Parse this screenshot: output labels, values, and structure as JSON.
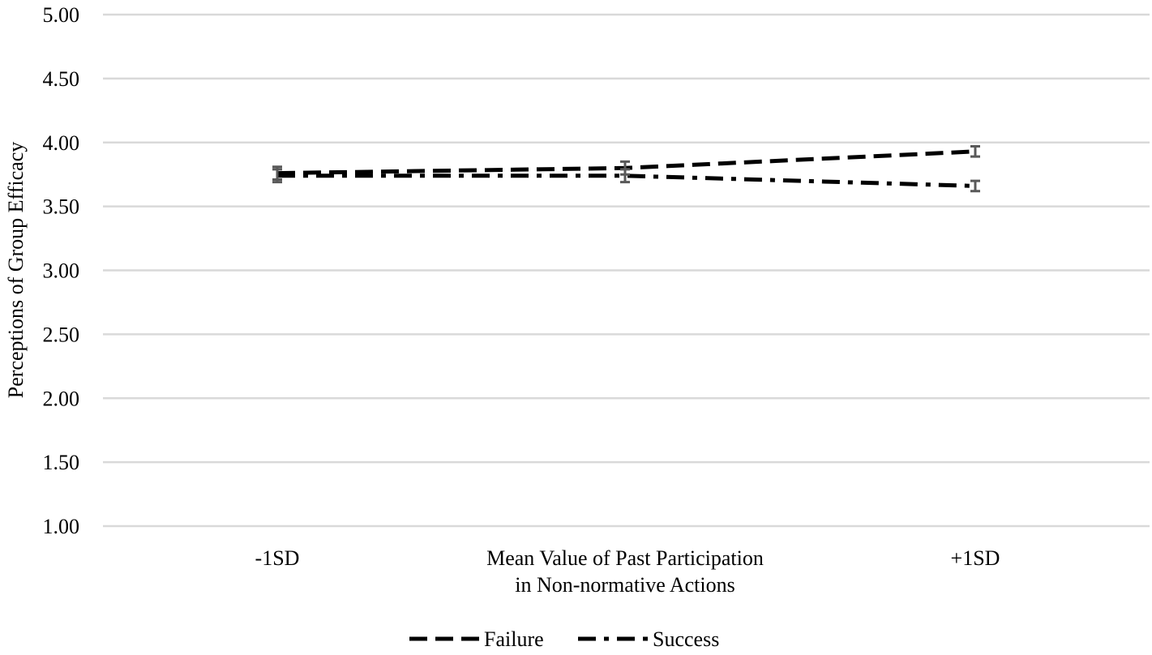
{
  "chart_data": {
    "type": "line",
    "categories": [
      "-1SD",
      "Mean Value of Past Participation",
      "+1SD"
    ],
    "category_label_lines": [
      [
        "-1SD"
      ],
      [
        "Mean Value of Past Participation",
        "in Non-normative Actions"
      ],
      [
        "+1SD"
      ]
    ],
    "ylabel": "Perceptions of Group Efficacy",
    "ylim": [
      1.0,
      5.0
    ],
    "yticks": [
      "1.00",
      "1.50",
      "2.00",
      "2.50",
      "3.00",
      "3.50",
      "4.00",
      "4.50",
      "5.00"
    ],
    "grid": true,
    "legend_position": "bottom",
    "series": [
      {
        "name": "Failure",
        "values": [
          3.76,
          3.8,
          3.93
        ],
        "errors": [
          0.05,
          0.05,
          0.04
        ],
        "dash": "dashed",
        "color": "#000000"
      },
      {
        "name": "Success",
        "values": [
          3.74,
          3.74,
          3.66
        ],
        "errors": [
          0.05,
          0.05,
          0.04
        ],
        "dash": "dash-dot",
        "color": "#000000"
      }
    ],
    "error_bar_color": "#595959",
    "gridline_color": "#d9d9d9"
  }
}
